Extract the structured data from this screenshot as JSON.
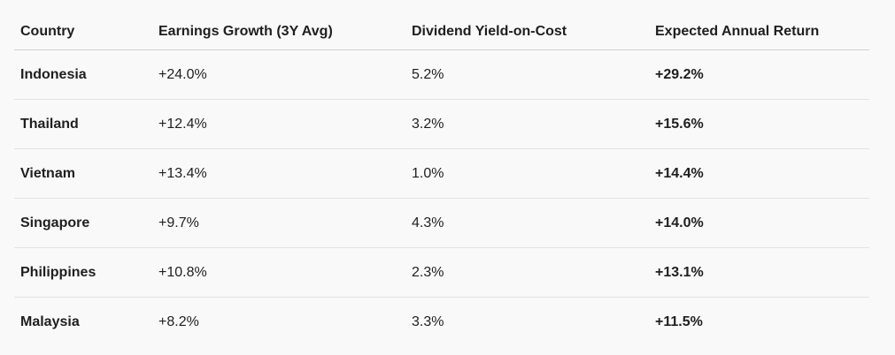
{
  "table": {
    "headers": [
      "Country",
      "Earnings Growth (3Y Avg)",
      "Dividend Yield-on-Cost",
      "Expected Annual Return"
    ],
    "rows": [
      {
        "country": "Indonesia",
        "earnings_growth": "+24.0%",
        "dividend_yield": "5.2%",
        "expected_return": "+29.2%"
      },
      {
        "country": "Thailand",
        "earnings_growth": "+12.4%",
        "dividend_yield": "3.2%",
        "expected_return": "+15.6%"
      },
      {
        "country": "Vietnam",
        "earnings_growth": "+13.4%",
        "dividend_yield": "1.0%",
        "expected_return": "+14.4%"
      },
      {
        "country": "Singapore",
        "earnings_growth": "+9.7%",
        "dividend_yield": "4.3%",
        "expected_return": "+14.0%"
      },
      {
        "country": "Philippines",
        "earnings_growth": "+10.8%",
        "dividend_yield": "2.3%",
        "expected_return": "+13.1%"
      },
      {
        "country": "Malaysia",
        "earnings_growth": "+8.2%",
        "dividend_yield": "3.3%",
        "expected_return": "+11.5%"
      }
    ]
  },
  "colors": {
    "background": "#f8f9f8",
    "text": "#1f1f1f",
    "row_divider": "#e2e3e2",
    "header_divider": "#cfd0cf"
  }
}
